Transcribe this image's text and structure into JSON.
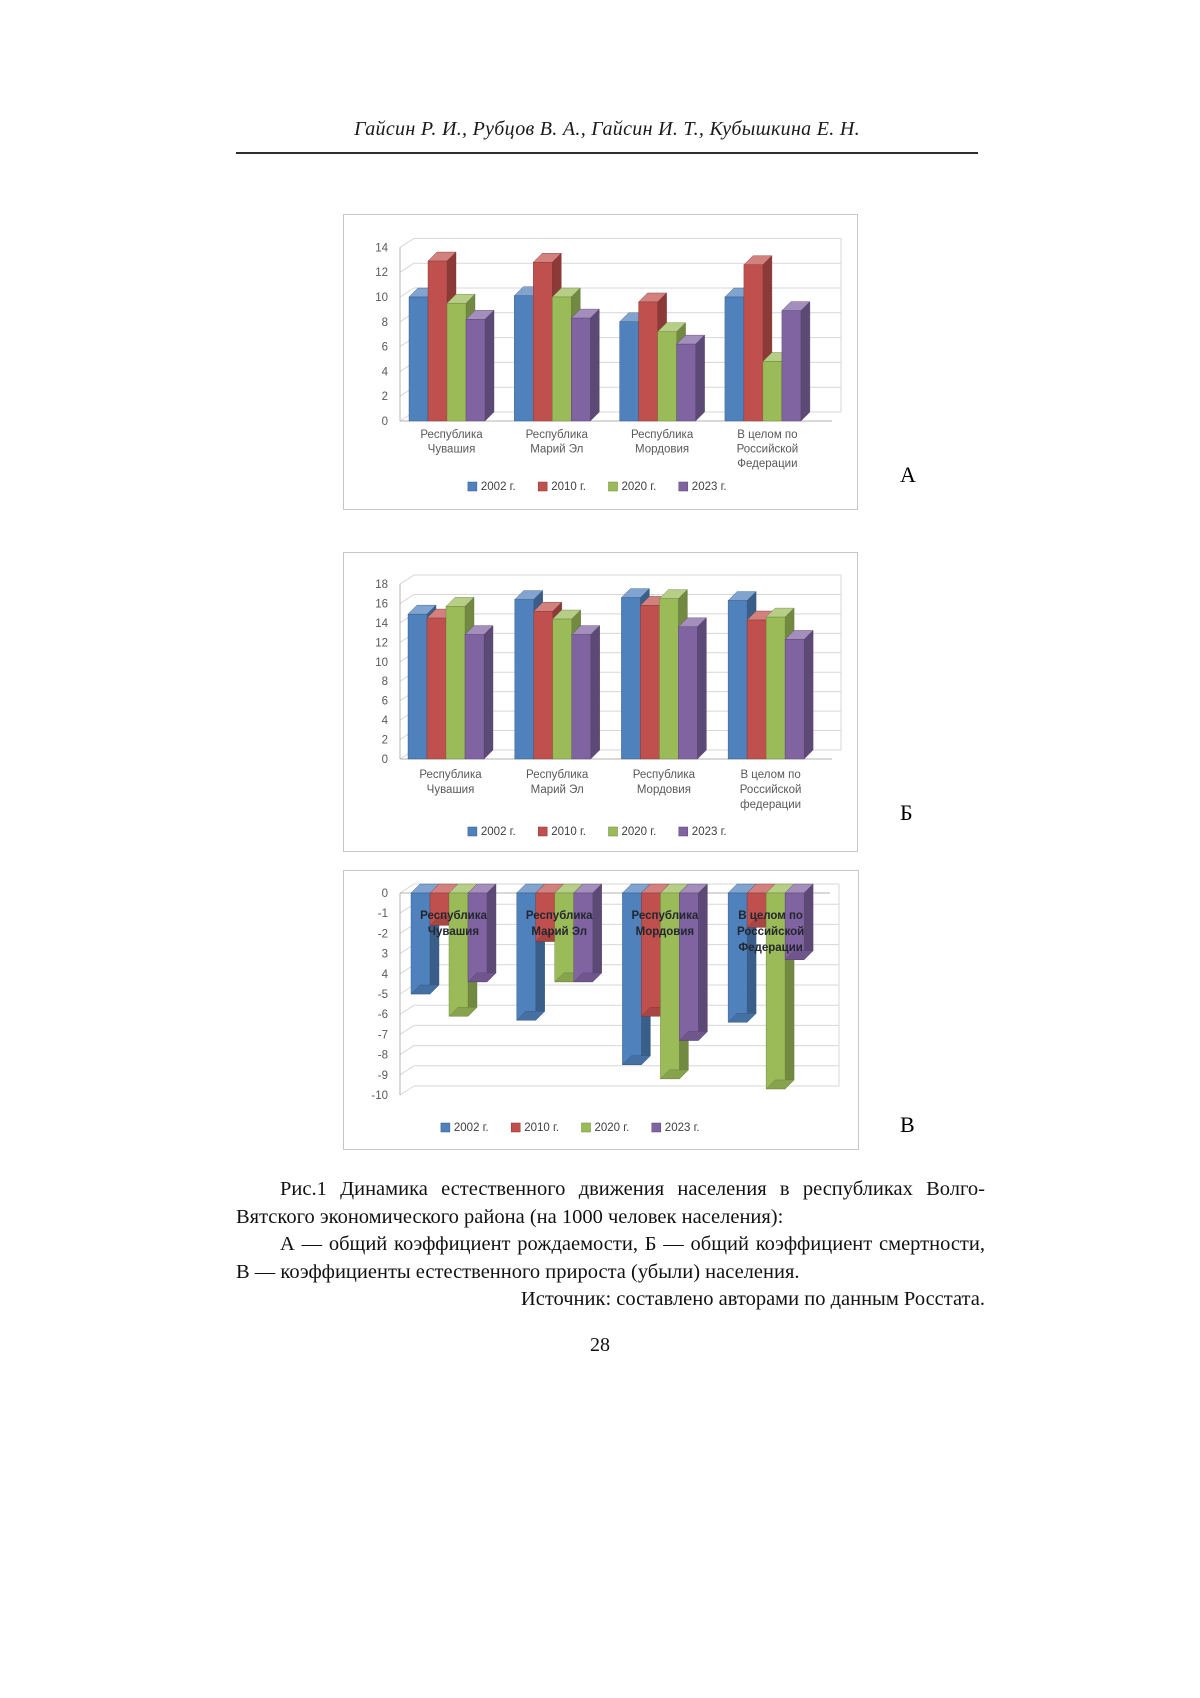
{
  "page": {
    "header_authors": "Гайсин Р. И., Рубцов В. А., Гайсин И. Т., Кубышкина Е. Н.",
    "page_number": "28"
  },
  "figure": {
    "panel_letters": {
      "a": "А",
      "b": "Б",
      "v": "В"
    },
    "caption": {
      "p1l1": "Рис.1 Динамика естественного движения населения в республиках Волго-",
      "p1l2": "Вятского экономического района (на 1000 человек населения):",
      "p2l1": "А — общий коэффициент рождаемости, Б — общий коэффициент смертности,",
      "p2l2": "В — коэффициенты естественного прироста (убыли) населения.",
      "p3": "Источник: составлено авторами по данным Росстата."
    }
  },
  "chart_data": [
    {
      "type": "bar",
      "id": "A",
      "title": "",
      "subtitle": "общий коэффициент рождаемости",
      "categories": [
        [
          "Республика",
          "Чувашия"
        ],
        [
          "Республика",
          "Марий Эл"
        ],
        [
          "Республика",
          "Мордовия"
        ],
        [
          "В целом по",
          "Российской",
          "Федерации"
        ]
      ],
      "series": [
        {
          "name": "2002 г.",
          "color": "#4F81BD",
          "values": [
            10.0,
            10.1,
            8.0,
            10.0
          ]
        },
        {
          "name": "2010 г.",
          "color": "#C0504D",
          "values": [
            12.9,
            12.8,
            9.6,
            12.6
          ]
        },
        {
          "name": "2020 г.",
          "color": "#9BBB59",
          "values": [
            9.5,
            10.0,
            7.2,
            4.8
          ]
        },
        {
          "name": "2023 г.",
          "color": "#8064A2",
          "values": [
            8.2,
            8.3,
            6.2,
            8.9
          ]
        }
      ],
      "ylim": [
        0,
        14
      ],
      "yticks": {
        "values": [
          0,
          2,
          4,
          6,
          8,
          10,
          12,
          14
        ],
        "labels": [
          "0",
          "2",
          "4",
          "6",
          "8",
          "10",
          "12",
          "14"
        ]
      },
      "grid": true,
      "legend_position": "bottom",
      "inner_category_labels": false
    },
    {
      "type": "bar",
      "id": "B",
      "title": "",
      "subtitle": "общий коэффициент смертности",
      "categories": [
        [
          "Республика",
          "Чувашия"
        ],
        [
          "Республика",
          "Марий Эл"
        ],
        [
          "Республика",
          "Мордовия"
        ],
        [
          "В целом по",
          "Российской",
          "федерации"
        ]
      ],
      "series": [
        {
          "name": "2002 г.",
          "color": "#4F81BD",
          "values": [
            14.9,
            16.4,
            16.6,
            16.3
          ]
        },
        {
          "name": "2010 г.",
          "color": "#C0504D",
          "values": [
            14.5,
            15.2,
            15.8,
            14.3
          ]
        },
        {
          "name": "2020 г.",
          "color": "#9BBB59",
          "values": [
            15.7,
            14.4,
            16.5,
            14.6
          ]
        },
        {
          "name": "2023 г.",
          "color": "#8064A2",
          "values": [
            12.8,
            12.8,
            13.6,
            12.3
          ]
        }
      ],
      "ylim": [
        0,
        18
      ],
      "yticks": {
        "values": [
          0,
          2,
          4,
          6,
          8,
          10,
          12,
          14,
          16,
          18
        ],
        "labels": [
          "0",
          "2",
          "4",
          "6",
          "8",
          "10",
          "12",
          "14",
          "16",
          "18"
        ]
      },
      "grid": true,
      "legend_position": "bottom",
      "inner_category_labels": false
    },
    {
      "type": "bar",
      "id": "V",
      "title": "",
      "subtitle": "коэффициенты естественного прироста (убыли) населения",
      "categories": [
        [
          "Республика",
          "Чувашия"
        ],
        [
          "Республика",
          "Марий Эл"
        ],
        [
          "Республика",
          "Мордовия"
        ],
        [
          "В целом по",
          "Российской",
          "Федерации"
        ]
      ],
      "series": [
        {
          "name": "2002 г.",
          "color": "#4F81BD",
          "values": [
            -5.0,
            -6.3,
            -8.5,
            -6.4
          ]
        },
        {
          "name": "2010 г.",
          "color": "#C0504D",
          "values": [
            -1.6,
            -2.4,
            -6.1,
            -1.7
          ]
        },
        {
          "name": "2020 г.",
          "color": "#9BBB59",
          "values": [
            -6.1,
            -4.4,
            -9.2,
            -9.7
          ]
        },
        {
          "name": "2023 г.",
          "color": "#8064A2",
          "values": [
            -4.4,
            -4.4,
            -7.3,
            -3.3
          ]
        }
      ],
      "ylim": [
        -10,
        0
      ],
      "yticks": {
        "values": [
          0,
          -1,
          -2,
          -3,
          -4,
          -5,
          -6,
          -7,
          -8,
          -9,
          -10
        ],
        "labels": [
          "0",
          "-1",
          "-2",
          "3",
          "4",
          "-5",
          "-6",
          "-7",
          "-8",
          "-9",
          "-10"
        ]
      },
      "grid": true,
      "legend_position": "bottom",
      "inner_category_labels": true
    }
  ]
}
